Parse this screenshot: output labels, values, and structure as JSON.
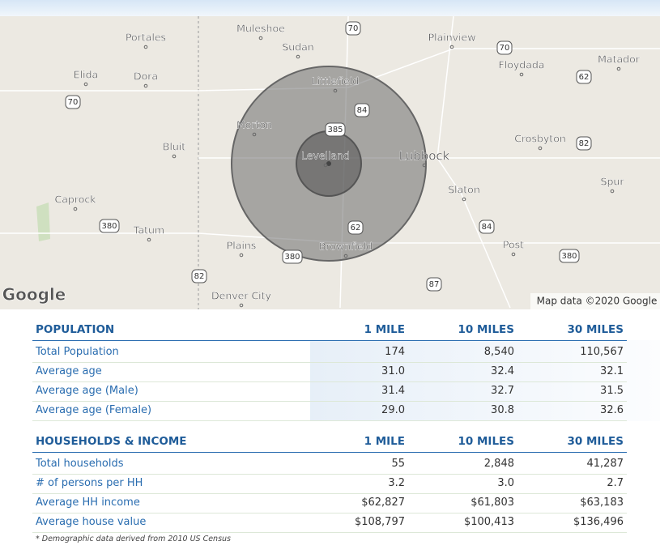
{
  "map": {
    "places": [
      "Portales",
      "Muleshoe",
      "Sudan",
      "Plainview",
      "Floydada",
      "Matador",
      "Elida",
      "Dora",
      "Littlefield",
      "Morton",
      "Levelland",
      "Lubbock",
      "Bluit",
      "Crosbyton",
      "Spur",
      "Caprock",
      "Tatum",
      "Slaton",
      "Plains",
      "Brownfield",
      "Post",
      "Denver City"
    ],
    "highways": [
      "70",
      "70",
      "62",
      "70",
      "84",
      "385",
      "82",
      "380",
      "62",
      "84",
      "380",
      "380",
      "82",
      "87"
    ],
    "logo": "Google",
    "attribution": "Map data ©2020 Google"
  },
  "sections": [
    {
      "header": [
        "POPULATION",
        "1 MILE",
        "10 MILES",
        "30 MILES"
      ],
      "rows": [
        [
          "Total Population",
          "174",
          "8,540",
          "110,567"
        ],
        [
          "Average age",
          "31.0",
          "32.4",
          "32.1"
        ],
        [
          "Average age (Male)",
          "31.4",
          "32.7",
          "31.5"
        ],
        [
          "Average age (Female)",
          "29.0",
          "30.8",
          "32.6"
        ]
      ]
    },
    {
      "header": [
        "HOUSEHOLDS & INCOME",
        "1 MILE",
        "10 MILES",
        "30 MILES"
      ],
      "rows": [
        [
          "Total households",
          "55",
          "2,848",
          "41,287"
        ],
        [
          "# of persons per HH",
          "3.2",
          "3.0",
          "2.7"
        ],
        [
          "Average HH income",
          "$62,827",
          "$61,803",
          "$63,183"
        ],
        [
          "Average house value",
          "$108,797",
          "$100,413",
          "$136,496"
        ]
      ]
    }
  ],
  "footnote": "* Demographic data derived from 2010 US Census"
}
